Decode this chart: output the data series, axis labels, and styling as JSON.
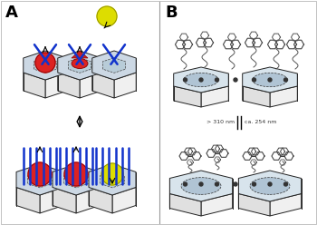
{
  "title_A": "A",
  "title_B": "B",
  "background_color": "#ffffff",
  "red_fill": "#dd2222",
  "yellow_fill": "#dddd00",
  "blue_line": "#1133cc",
  "wavelength_text": "> 310 nm",
  "wavelength_text2": "ca. 254 nm"
}
